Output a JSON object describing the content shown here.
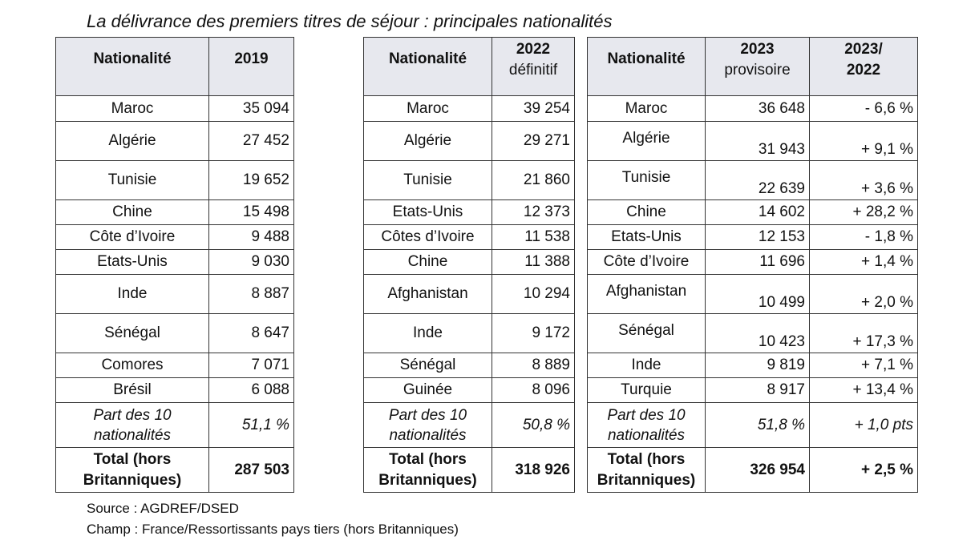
{
  "title": "La délivrance des premiers titres de séjour : principales nationalités",
  "table_2019": {
    "header": {
      "col1": "Nationalité",
      "col2": "2019"
    },
    "rows": [
      [
        "Maroc",
        "35 094"
      ],
      [
        "Algérie",
        "27 452"
      ],
      [
        "Tunisie",
        "19 652"
      ],
      [
        "Chine",
        "15 498"
      ],
      [
        "Côte d’Ivoire",
        "9 488"
      ],
      [
        "Etats-Unis",
        "9 030"
      ],
      [
        "Inde",
        "8 887"
      ],
      [
        "Sénégal",
        "8 647"
      ],
      [
        "Comores",
        "7 071"
      ],
      [
        "Brésil",
        "6 088"
      ]
    ],
    "share": {
      "label": "Part des 10 nationalités",
      "value": "51,1 %"
    },
    "total": {
      "label": "Total (hors Britanniques)",
      "value": "287 503"
    }
  },
  "table_2022": {
    "header": {
      "col1": "Nationalité",
      "col2_line1": "2022",
      "col2_line2": "définitif"
    },
    "rows": [
      [
        "Maroc",
        "39 254"
      ],
      [
        "Algérie",
        "29 271"
      ],
      [
        "Tunisie",
        "21 860"
      ],
      [
        "Etats-Unis",
        "12 373"
      ],
      [
        "Côtes d’Ivoire",
        "11 538"
      ],
      [
        "Chine",
        "11 388"
      ],
      [
        "Afghanistan",
        "10 294"
      ],
      [
        "Inde",
        "9 172"
      ],
      [
        "Sénégal",
        "8 889"
      ],
      [
        "Guinée",
        "8 096"
      ]
    ],
    "share": {
      "label": "Part des 10 nationalités",
      "value": "50,8 %"
    },
    "total": {
      "label": "Total (hors Britanniques)",
      "value": "318 926"
    }
  },
  "table_2023": {
    "header": {
      "col1": "Nationalité",
      "col2_line1": "2023",
      "col2_line2": "provisoire",
      "col3_line1": "2023/",
      "col3_line2": "2022"
    },
    "rows": [
      [
        "Maroc",
        "36 648",
        "- 6,6 %"
      ],
      [
        "Algérie",
        "31 943",
        "+ 9,1 %"
      ],
      [
        "Tunisie",
        "22 639",
        "+ 3,6 %"
      ],
      [
        "Chine",
        "14 602",
        "+ 28,2 %"
      ],
      [
        "Etats-Unis",
        "12 153",
        "- 1,8 %"
      ],
      [
        "Côte d’Ivoire",
        "11 696",
        "+ 1,4 %"
      ],
      [
        "Afghanistan",
        "10 499",
        "+ 2,0 %"
      ],
      [
        "Sénégal",
        "10 423",
        "+ 17,3 %"
      ],
      [
        "Inde",
        "9 819",
        "+ 7,1 %"
      ],
      [
        "Turquie",
        "8 917",
        "+ 13,4 %"
      ]
    ],
    "share": {
      "label": "Part des 10 nationalités",
      "value": "51,8 %",
      "change": "+ 1,0 pts"
    },
    "total": {
      "label": "Total (hors Britanniques)",
      "value": "326 954",
      "change": "+ 2,5 %"
    }
  },
  "source": "Source : AGDREF/DSED",
  "scope": "Champ : France/Ressortissants pays tiers (hors Britanniques)"
}
